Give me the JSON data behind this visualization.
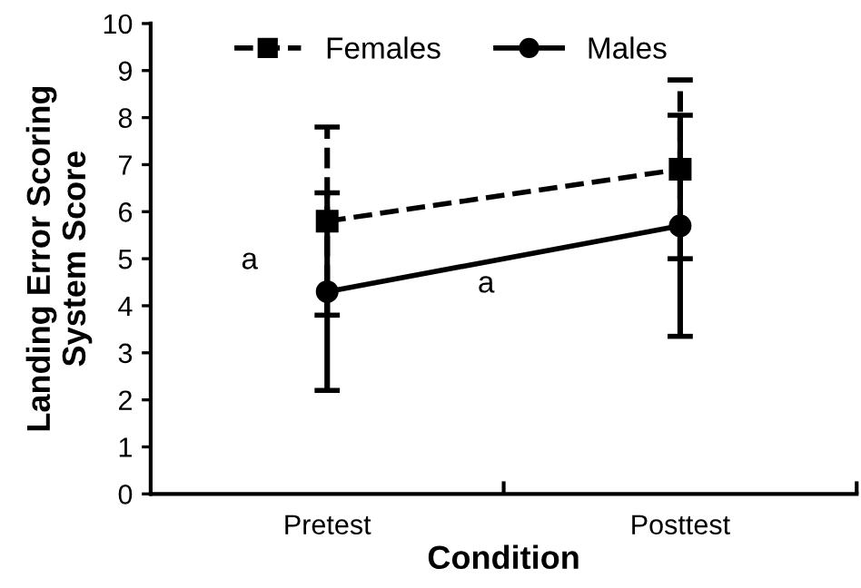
{
  "chart_data": {
    "type": "line",
    "xlabel": "Condition",
    "ylabel": "Landing Error Scoring\nSystem Score",
    "categories": [
      "Pretest",
      "Posttest"
    ],
    "series": [
      {
        "name": "Females",
        "color": "#000000",
        "values": [
          5.8,
          6.9
        ],
        "errors": [
          2.0,
          1.9
        ],
        "marker": "square",
        "line_style": "dashed"
      },
      {
        "name": "Males",
        "color": "#000000",
        "values": [
          4.3,
          5.7
        ],
        "errors": [
          2.1,
          2.35
        ],
        "marker": "circle",
        "line_style": "solid"
      }
    ],
    "ylim": [
      0,
      10
    ],
    "yticks": [
      0,
      1,
      2,
      3,
      4,
      5,
      6,
      7,
      8,
      9,
      10
    ],
    "grid": false,
    "legend": "top left",
    "annotations": [
      "a",
      "a"
    ]
  }
}
